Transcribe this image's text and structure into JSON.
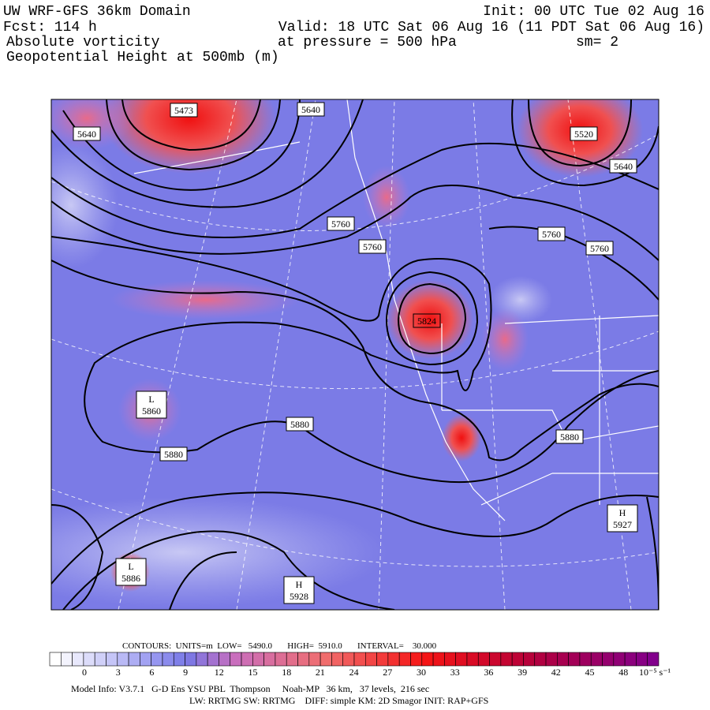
{
  "header": {
    "title": "UW WRF-GFS 36km Domain",
    "init": "Init: 00 UTC Tue 02 Aug 16",
    "fcst": "Fcst:  114 h",
    "valid": "Valid: 18 UTC Sat 06 Aug 16 (11 PDT Sat 06 Aug 16)",
    "field1": "Absolute vorticity",
    "pressure": "at pressure =  500 hPa",
    "smooth": "sm= 2",
    "field2": "Geopotential Height at 500mb (m)"
  },
  "map": {
    "contour_labels": [
      "5473",
      "5640",
      "5640",
      "5520",
      "5640",
      "5760",
      "5760",
      "5760",
      "5760",
      "5824",
      "5880",
      "5880",
      "5880"
    ],
    "extrema": [
      {
        "letter": "L",
        "value": "5860"
      },
      {
        "letter": "L",
        "value": "5886"
      },
      {
        "letter": "H",
        "value": "5928"
      },
      {
        "letter": "H",
        "value": "5927"
      }
    ]
  },
  "footer": {
    "contours": "CONTOURS:  UNITS=m  LOW=   5490.0       HIGH=  5910.0       INTERVAL=    30.000",
    "colorbar_ticks": [
      "0",
      "3",
      "6",
      "9",
      "12",
      "15",
      "18",
      "21",
      "24",
      "27",
      "30",
      "33",
      "36",
      "39",
      "42",
      "45",
      "48"
    ],
    "colorbar_unit": "10⁻⁵ s⁻¹",
    "model_info": "Model Info: V3.7.1   G-D Ens YSU PBL  Thompson     Noah-MP   36 km,   37 levels,  216 sec",
    "model_info2": "LW: RRTMG SW: RRTMG    DIFF: simple KM: 2D Smagor INIT: RAP+GFS"
  }
}
